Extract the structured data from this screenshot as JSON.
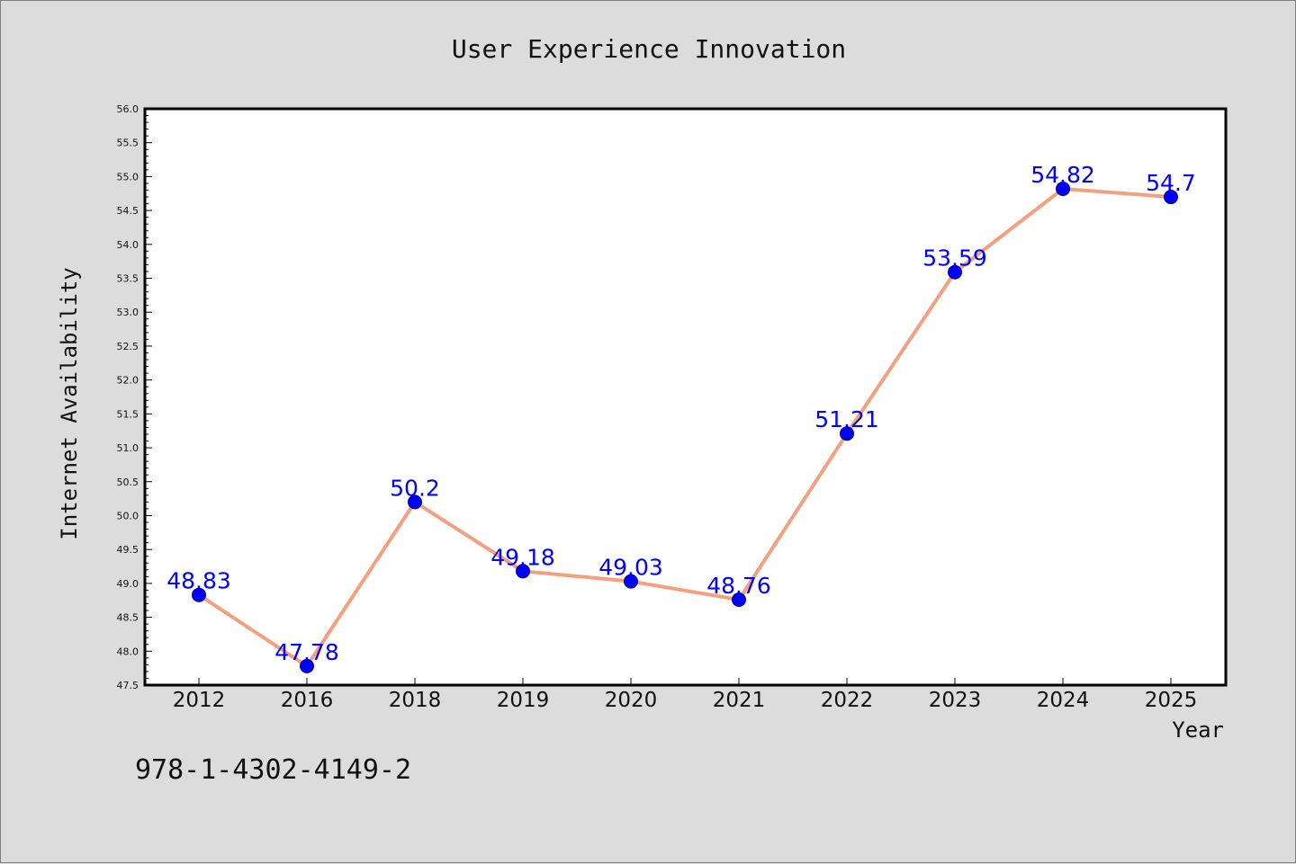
{
  "chart_data": {
    "type": "line",
    "title": "User Experience Innovation",
    "xlabel": "Year",
    "ylabel": "Internet Availability",
    "x": [
      "2012",
      "2016",
      "2018",
      "2019",
      "2020",
      "2021",
      "2022",
      "2023",
      "2024",
      "2025"
    ],
    "series": [
      {
        "values": [
          48.83,
          47.78,
          50.2,
          49.18,
          49.03,
          48.76,
          51.21,
          53.59,
          54.82,
          54.7
        ],
        "labels": [
          "48.83",
          "47.78",
          "50.2",
          "49.18",
          "49.03",
          "48.76",
          "51.21",
          "53.59",
          "54.82",
          "54.7"
        ],
        "line_color": "#f4a07f",
        "marker_color": "#0000ff"
      }
    ],
    "ylim": [
      47.5,
      56.0
    ],
    "ytick_step": 0.5,
    "grid": false,
    "legend": "none"
  },
  "annotation": {
    "text": "978-1-4302-4149-2"
  },
  "colors": {
    "background": "#dcdcdc",
    "plot_background": "#ffffff",
    "label_color": "#0000ff"
  }
}
